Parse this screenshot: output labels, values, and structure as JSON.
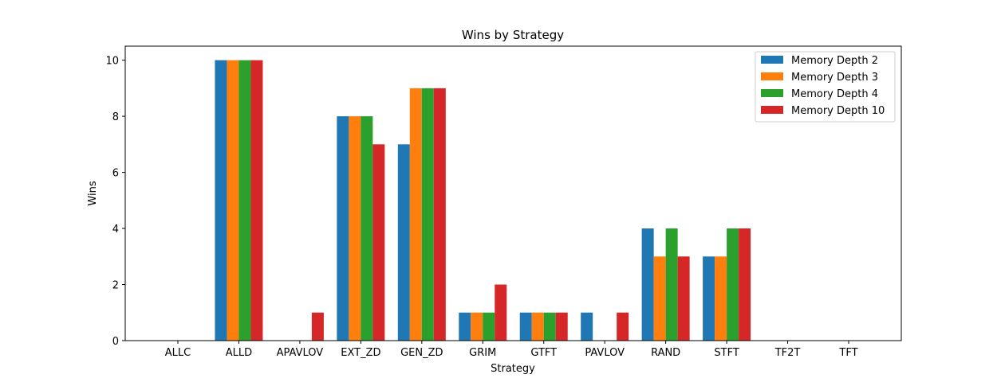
{
  "chart_data": {
    "type": "bar",
    "title": "Wins by Strategy",
    "xlabel": "Strategy",
    "ylabel": "Wins",
    "ylim": [
      0,
      10.5
    ],
    "yticks": [
      0,
      2,
      4,
      6,
      8,
      10
    ],
    "grid": false,
    "legend_position": "top-right",
    "categories": [
      "ALLC",
      "ALLD",
      "APAVLOV",
      "EXT_ZD",
      "GEN_ZD",
      "GRIM",
      "GTFT",
      "PAVLOV",
      "RAND",
      "STFT",
      "TF2T",
      "TFT"
    ],
    "series": [
      {
        "name": "Memory Depth 2",
        "color": "#1f77b4",
        "values": [
          0,
          10,
          0,
          8,
          7,
          1,
          1,
          1,
          4,
          3,
          0,
          0
        ]
      },
      {
        "name": "Memory Depth 3",
        "color": "#ff7f0e",
        "values": [
          0,
          10,
          0,
          8,
          9,
          1,
          1,
          0,
          3,
          3,
          0,
          0
        ]
      },
      {
        "name": "Memory Depth 4",
        "color": "#2ca02c",
        "values": [
          0,
          10,
          0,
          8,
          9,
          1,
          1,
          0,
          4,
          4,
          0,
          0
        ]
      },
      {
        "name": "Memory Depth 10",
        "color": "#d62728",
        "values": [
          0,
          10,
          1,
          7,
          9,
          2,
          1,
          1,
          3,
          4,
          0,
          0
        ]
      }
    ]
  }
}
